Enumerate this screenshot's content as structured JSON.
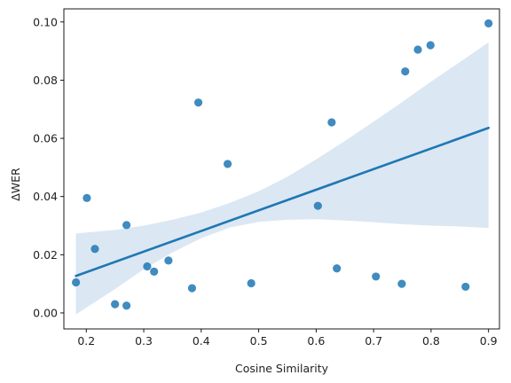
{
  "chart_data": {
    "type": "scatter",
    "xlabel": "Cosine Similarity",
    "ylabel": "ΔWER",
    "xlim": [
      0.161,
      0.919
    ],
    "ylim": [
      -0.0055,
      0.1045
    ],
    "x_ticks": [
      "0.2",
      "0.3",
      "0.4",
      "0.5",
      "0.6",
      "0.7",
      "0.8",
      "0.9"
    ],
    "y_ticks": [
      "0.00",
      "0.02",
      "0.04",
      "0.06",
      "0.08",
      "0.10"
    ],
    "grid": false,
    "legend": "none",
    "colors": {
      "points": "#1f77b4",
      "regression_line": "#1f77b4",
      "confidence_band": "#dbe7f3"
    },
    "points": [
      {
        "x": 0.182,
        "y": 0.0105
      },
      {
        "x": 0.201,
        "y": 0.0395
      },
      {
        "x": 0.215,
        "y": 0.022
      },
      {
        "x": 0.25,
        "y": 0.003
      },
      {
        "x": 0.27,
        "y": 0.0025
      },
      {
        "x": 0.27,
        "y": 0.0302
      },
      {
        "x": 0.306,
        "y": 0.016
      },
      {
        "x": 0.318,
        "y": 0.0142
      },
      {
        "x": 0.343,
        "y": 0.018
      },
      {
        "x": 0.384,
        "y": 0.0085
      },
      {
        "x": 0.395,
        "y": 0.0723
      },
      {
        "x": 0.446,
        "y": 0.0512
      },
      {
        "x": 0.487,
        "y": 0.0102
      },
      {
        "x": 0.603,
        "y": 0.0368
      },
      {
        "x": 0.627,
        "y": 0.0655
      },
      {
        "x": 0.636,
        "y": 0.0153
      },
      {
        "x": 0.704,
        "y": 0.0125
      },
      {
        "x": 0.749,
        "y": 0.01
      },
      {
        "x": 0.755,
        "y": 0.083
      },
      {
        "x": 0.777,
        "y": 0.0905
      },
      {
        "x": 0.799,
        "y": 0.092
      },
      {
        "x": 0.86,
        "y": 0.009
      },
      {
        "x": 0.9,
        "y": 0.0995
      }
    ],
    "regression_line": {
      "x": [
        0.182,
        0.9
      ],
      "y": [
        0.0127,
        0.0636
      ]
    },
    "confidence_band": {
      "x": [
        0.182,
        0.25,
        0.3,
        0.35,
        0.4,
        0.45,
        0.5,
        0.55,
        0.6,
        0.65,
        0.7,
        0.75,
        0.8,
        0.85,
        0.9
      ],
      "lower": [
        -0.0005,
        0.0082,
        0.015,
        0.0208,
        0.0257,
        0.0294,
        0.0313,
        0.032,
        0.0322,
        0.0318,
        0.0312,
        0.0305,
        0.03,
        0.0297,
        0.0292
      ],
      "upper": [
        0.0273,
        0.0285,
        0.03,
        0.032,
        0.0345,
        0.0378,
        0.0418,
        0.0468,
        0.0528,
        0.0591,
        0.0657,
        0.0725,
        0.0795,
        0.0862,
        0.093
      ]
    }
  }
}
